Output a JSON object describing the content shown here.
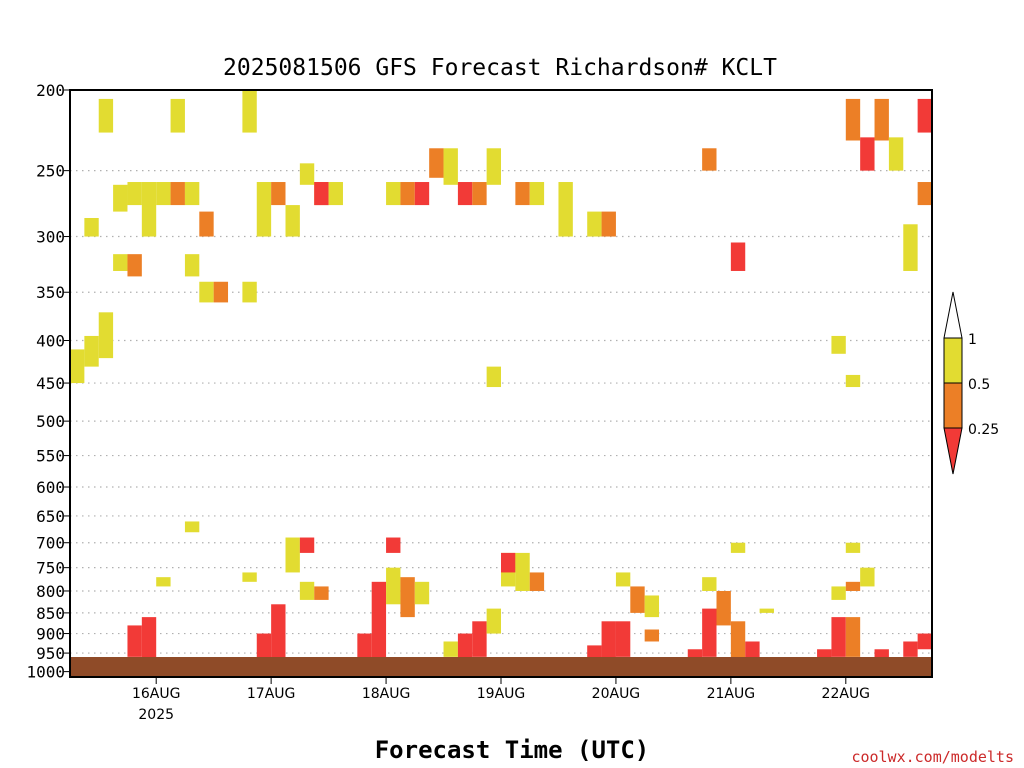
{
  "title": "2025081506 GFS Forecast Richardson# KCLT",
  "xlabel": "Forecast Time (UTC)",
  "credit": "coolwx.com/modelts",
  "colors": {
    "below_0.25": "#f23a37",
    "0.25_0.5": "#ec7f26",
    "0.5_1": "#e2dc31",
    "above_1": "#ffffff",
    "ground": "#8f4b28"
  },
  "legend": {
    "labels": [
      "1",
      "0.5",
      "0.25"
    ]
  },
  "chart_data": {
    "type": "heatmap",
    "title": "2025081506 GFS Forecast Richardson# KCLT",
    "xlabel": "Forecast Time (UTC)",
    "ylabel": "",
    "y_scale": "log",
    "y_inverted": true,
    "ylim": [
      1015,
      200
    ],
    "yticks": [
      "200",
      "250",
      "300",
      "350",
      "400",
      "450",
      "500",
      "550",
      "600",
      "650",
      "700",
      "750",
      "800",
      "850",
      "900",
      "950",
      "1000"
    ],
    "xlim": [
      "2025-08-15 06Z",
      "2025-08-22 18Z"
    ],
    "xticks": [
      {
        "label": "16AUG",
        "sub": "2025",
        "time": "2025-08-16 00Z"
      },
      {
        "label": "17AUG",
        "sub": "",
        "time": "2025-08-17 00Z"
      },
      {
        "label": "18AUG",
        "sub": "",
        "time": "2025-08-18 00Z"
      },
      {
        "label": "19AUG",
        "sub": "",
        "time": "2025-08-19 00Z"
      },
      {
        "label": "20AUG",
        "sub": "",
        "time": "2025-08-20 00Z"
      },
      {
        "label": "21AUG",
        "sub": "",
        "time": "2025-08-21 00Z"
      },
      {
        "label": "22AUG",
        "sub": "",
        "time": "2025-08-22 00Z"
      }
    ],
    "grid": "dotted horizontal at pressure levels",
    "categories": [
      "< 0.25",
      "0.25 - 0.5",
      "0.5 - 1",
      "> 1"
    ],
    "cells": [
      {
        "t": "2025-08-15 06Z",
        "p0": 410,
        "p1": 450,
        "c": "0.5_1"
      },
      {
        "t": "2025-08-15 09Z",
        "p0": 395,
        "p1": 430,
        "c": "0.5_1"
      },
      {
        "t": "2025-08-15 09Z",
        "p0": 285,
        "p1": 300,
        "c": "0.5_1"
      },
      {
        "t": "2025-08-15 12Z",
        "p0": 370,
        "p1": 420,
        "c": "0.5_1"
      },
      {
        "t": "2025-08-15 12Z",
        "p0": 205,
        "p1": 225,
        "c": "0.5_1"
      },
      {
        "t": "2025-08-15 15Z",
        "p0": 260,
        "p1": 280,
        "c": "0.5_1"
      },
      {
        "t": "2025-08-15 15Z",
        "p0": 315,
        "p1": 330,
        "c": "0.5_1"
      },
      {
        "t": "2025-08-15 18Z",
        "p0": 258,
        "p1": 275,
        "c": "0.5_1"
      },
      {
        "t": "2025-08-15 18Z",
        "p0": 315,
        "p1": 335,
        "c": "0.25_0.5"
      },
      {
        "t": "2025-08-15 21Z",
        "p0": 258,
        "p1": 300,
        "c": "0.5_1"
      },
      {
        "t": "2025-08-16 00Z",
        "p0": 258,
        "p1": 275,
        "c": "0.5_1"
      },
      {
        "t": "2025-08-16 03Z",
        "p0": 258,
        "p1": 275,
        "c": "0.25_0.5"
      },
      {
        "t": "2025-08-16 03Z",
        "p0": 205,
        "p1": 225,
        "c": "0.5_1"
      },
      {
        "t": "2025-08-16 06Z",
        "p0": 258,
        "p1": 275,
        "c": "0.5_1"
      },
      {
        "t": "2025-08-16 06Z",
        "p0": 315,
        "p1": 335,
        "c": "0.5_1"
      },
      {
        "t": "2025-08-16 09Z",
        "p0": 280,
        "p1": 300,
        "c": "0.25_0.5"
      },
      {
        "t": "2025-08-16 09Z",
        "p0": 340,
        "p1": 360,
        "c": "0.5_1"
      },
      {
        "t": "2025-08-16 12Z",
        "p0": 340,
        "p1": 360,
        "c": "0.25_0.5"
      },
      {
        "t": "2025-08-16 18Z",
        "p0": 200,
        "p1": 225,
        "c": "0.5_1"
      },
      {
        "t": "2025-08-16 18Z",
        "p0": 340,
        "p1": 360,
        "c": "0.5_1"
      },
      {
        "t": "2025-08-16 21Z",
        "p0": 258,
        "p1": 300,
        "c": "0.5_1"
      },
      {
        "t": "2025-08-17 00Z",
        "p0": 258,
        "p1": 275,
        "c": "0.25_0.5"
      },
      {
        "t": "2025-08-17 03Z",
        "p0": 275,
        "p1": 300,
        "c": "0.5_1"
      },
      {
        "t": "2025-08-17 06Z",
        "p0": 245,
        "p1": 260,
        "c": "0.5_1"
      },
      {
        "t": "2025-08-17 09Z",
        "p0": 258,
        "p1": 275,
        "c": "0.25_0.5"
      },
      {
        "t": "2025-08-17 09Z",
        "p0": 258,
        "p1": 275,
        "c": "below_0.25"
      },
      {
        "t": "2025-08-17 12Z",
        "p0": 258,
        "p1": 275,
        "c": "0.5_1"
      },
      {
        "t": "2025-08-18 00Z",
        "p0": 258,
        "p1": 275,
        "c": "0.5_1"
      },
      {
        "t": "2025-08-18 03Z",
        "p0": 258,
        "p1": 275,
        "c": "0.25_0.5"
      },
      {
        "t": "2025-08-18 06Z",
        "p0": 258,
        "p1": 275,
        "c": "below_0.25"
      },
      {
        "t": "2025-08-18 09Z",
        "p0": 235,
        "p1": 255,
        "c": "0.25_0.5"
      },
      {
        "t": "2025-08-18 12Z",
        "p0": 235,
        "p1": 260,
        "c": "0.5_1"
      },
      {
        "t": "2025-08-18 15Z",
        "p0": 258,
        "p1": 275,
        "c": "below_0.25"
      },
      {
        "t": "2025-08-18 18Z",
        "p0": 258,
        "p1": 275,
        "c": "0.25_0.5"
      },
      {
        "t": "2025-08-18 21Z",
        "p0": 235,
        "p1": 260,
        "c": "0.5_1"
      },
      {
        "t": "2025-08-18 21Z",
        "p0": 430,
        "p1": 455,
        "c": "0.5_1"
      },
      {
        "t": "2025-08-19 03Z",
        "p0": 258,
        "p1": 275,
        "c": "0.25_0.5"
      },
      {
        "t": "2025-08-19 06Z",
        "p0": 258,
        "p1": 275,
        "c": "0.5_1"
      },
      {
        "t": "2025-08-19 12Z",
        "p0": 258,
        "p1": 300,
        "c": "0.5_1"
      },
      {
        "t": "2025-08-19 18Z",
        "p0": 280,
        "p1": 300,
        "c": "0.5_1"
      },
      {
        "t": "2025-08-19 21Z",
        "p0": 280,
        "p1": 300,
        "c": "0.25_0.5"
      },
      {
        "t": "2025-08-20 18Z",
        "p0": 235,
        "p1": 250,
        "c": "0.25_0.5"
      },
      {
        "t": "2025-08-21 00Z",
        "p0": 305,
        "p1": 330,
        "c": "below_0.25"
      },
      {
        "t": "2025-08-21 21Z",
        "p0": 395,
        "p1": 415,
        "c": "0.5_1"
      },
      {
        "t": "2025-08-22 00Z",
        "p0": 440,
        "p1": 455,
        "c": "0.5_1"
      },
      {
        "t": "2025-08-22 00Z",
        "p0": 205,
        "p1": 230,
        "c": "0.25_0.5"
      },
      {
        "t": "2025-08-22 03Z",
        "p0": 228,
        "p1": 250,
        "c": "below_0.25"
      },
      {
        "t": "2025-08-22 06Z",
        "p0": 205,
        "p1": 230,
        "c": "0.25_0.5"
      },
      {
        "t": "2025-08-22 09Z",
        "p0": 228,
        "p1": 250,
        "c": "0.5_1"
      },
      {
        "t": "2025-08-22 12Z",
        "p0": 290,
        "p1": 330,
        "c": "0.5_1"
      },
      {
        "t": "2025-08-22 15Z",
        "p0": 205,
        "p1": 225,
        "c": "below_0.25"
      },
      {
        "t": "2025-08-22 15Z",
        "p0": 258,
        "p1": 275,
        "c": "0.25_0.5"
      },
      {
        "t": "2025-08-15 18Z",
        "p0": 880,
        "p1": 960,
        "c": "below_0.25"
      },
      {
        "t": "2025-08-15 21Z",
        "p0": 860,
        "p1": 980,
        "c": "below_0.25"
      },
      {
        "t": "2025-08-16 00Z",
        "p0": 770,
        "p1": 790,
        "c": "0.5_1"
      },
      {
        "t": "2025-08-16 06Z",
        "p0": 660,
        "p1": 680,
        "c": "0.5_1"
      },
      {
        "t": "2025-08-16 18Z",
        "p0": 760,
        "p1": 780,
        "c": "0.5_1"
      },
      {
        "t": "2025-08-16 21Z",
        "p0": 900,
        "p1": 990,
        "c": "below_0.25"
      },
      {
        "t": "2025-08-17 00Z",
        "p0": 830,
        "p1": 980,
        "c": "below_0.25"
      },
      {
        "t": "2025-08-17 03Z",
        "p0": 690,
        "p1": 760,
        "c": "0.5_1"
      },
      {
        "t": "2025-08-17 06Z",
        "p0": 690,
        "p1": 720,
        "c": "below_0.25"
      },
      {
        "t": "2025-08-17 06Z",
        "p0": 780,
        "p1": 820,
        "c": "0.5_1"
      },
      {
        "t": "2025-08-17 09Z",
        "p0": 790,
        "p1": 820,
        "c": "0.25_0.5"
      },
      {
        "t": "2025-08-17 18Z",
        "p0": 900,
        "p1": 990,
        "c": "below_0.25"
      },
      {
        "t": "2025-08-17 21Z",
        "p0": 780,
        "p1": 990,
        "c": "below_0.25"
      },
      {
        "t": "2025-08-18 00Z",
        "p0": 690,
        "p1": 720,
        "c": "below_0.25"
      },
      {
        "t": "2025-08-18 00Z",
        "p0": 750,
        "p1": 830,
        "c": "0.5_1"
      },
      {
        "t": "2025-08-18 03Z",
        "p0": 770,
        "p1": 860,
        "c": "0.25_0.5"
      },
      {
        "t": "2025-08-18 06Z",
        "p0": 780,
        "p1": 830,
        "c": "0.5_1"
      },
      {
        "t": "2025-08-18 12Z",
        "p0": 920,
        "p1": 960,
        "c": "0.5_1"
      },
      {
        "t": "2025-08-18 15Z",
        "p0": 900,
        "p1": 990,
        "c": "below_0.25"
      },
      {
        "t": "2025-08-18 18Z",
        "p0": 870,
        "p1": 960,
        "c": "below_0.25"
      },
      {
        "t": "2025-08-18 21Z",
        "p0": 840,
        "p1": 900,
        "c": "0.5_1"
      },
      {
        "t": "2025-08-19 00Z",
        "p0": 720,
        "p1": 790,
        "c": "0.5_1"
      },
      {
        "t": "2025-08-19 00Z",
        "p0": 720,
        "p1": 760,
        "c": "below_0.25"
      },
      {
        "t": "2025-08-19 03Z",
        "p0": 720,
        "p1": 800,
        "c": "0.5_1"
      },
      {
        "t": "2025-08-19 06Z",
        "p0": 760,
        "p1": 800,
        "c": "0.25_0.5"
      },
      {
        "t": "2025-08-19 18Z",
        "p0": 930,
        "p1": 990,
        "c": "below_0.25"
      },
      {
        "t": "2025-08-19 21Z",
        "p0": 870,
        "p1": 980,
        "c": "below_0.25"
      },
      {
        "t": "2025-08-20 00Z",
        "p0": 870,
        "p1": 960,
        "c": "below_0.25"
      },
      {
        "t": "2025-08-20 00Z",
        "p0": 760,
        "p1": 790,
        "c": "0.5_1"
      },
      {
        "t": "2025-08-20 03Z",
        "p0": 790,
        "p1": 850,
        "c": "0.25_0.5"
      },
      {
        "t": "2025-08-20 06Z",
        "p0": 810,
        "p1": 860,
        "c": "0.5_1"
      },
      {
        "t": "2025-08-20 06Z",
        "p0": 890,
        "p1": 920,
        "c": "0.25_0.5"
      },
      {
        "t": "2025-08-20 15Z",
        "p0": 940,
        "p1": 1000,
        "c": "below_0.25"
      },
      {
        "t": "2025-08-20 18Z",
        "p0": 770,
        "p1": 800,
        "c": "0.5_1"
      },
      {
        "t": "2025-08-20 18Z",
        "p0": 840,
        "p1": 960,
        "c": "below_0.25"
      },
      {
        "t": "2025-08-20 21Z",
        "p0": 800,
        "p1": 880,
        "c": "0.25_0.5"
      },
      {
        "t": "2025-08-21 00Z",
        "p0": 700,
        "p1": 720,
        "c": "0.5_1"
      },
      {
        "t": "2025-08-21 00Z",
        "p0": 870,
        "p1": 980,
        "c": "0.25_0.5"
      },
      {
        "t": "2025-08-21 03Z",
        "p0": 920,
        "p1": 1000,
        "c": "below_0.25"
      },
      {
        "t": "2025-08-21 06Z",
        "p0": 840,
        "p1": 850,
        "c": "0.5_1"
      },
      {
        "t": "2025-08-21 18Z",
        "p0": 940,
        "p1": 990,
        "c": "below_0.25"
      },
      {
        "t": "2025-08-21 21Z",
        "p0": 790,
        "p1": 820,
        "c": "0.5_1"
      },
      {
        "t": "2025-08-21 21Z",
        "p0": 860,
        "p1": 960,
        "c": "below_0.25"
      },
      {
        "t": "2025-08-22 00Z",
        "p0": 700,
        "p1": 720,
        "c": "0.5_1"
      },
      {
        "t": "2025-08-22 00Z",
        "p0": 780,
        "p1": 800,
        "c": "0.25_0.5"
      },
      {
        "t": "2025-08-22 00Z",
        "p0": 860,
        "p1": 960,
        "c": "0.25_0.5"
      },
      {
        "t": "2025-08-22 03Z",
        "p0": 750,
        "p1": 790,
        "c": "0.5_1"
      },
      {
        "t": "2025-08-22 06Z",
        "p0": 940,
        "p1": 990,
        "c": "below_0.25"
      },
      {
        "t": "2025-08-22 12Z",
        "p0": 920,
        "p1": 960,
        "c": "below_0.25"
      },
      {
        "t": "2025-08-22 15Z",
        "p0": 900,
        "p1": 940,
        "c": "below_0.25"
      }
    ]
  }
}
